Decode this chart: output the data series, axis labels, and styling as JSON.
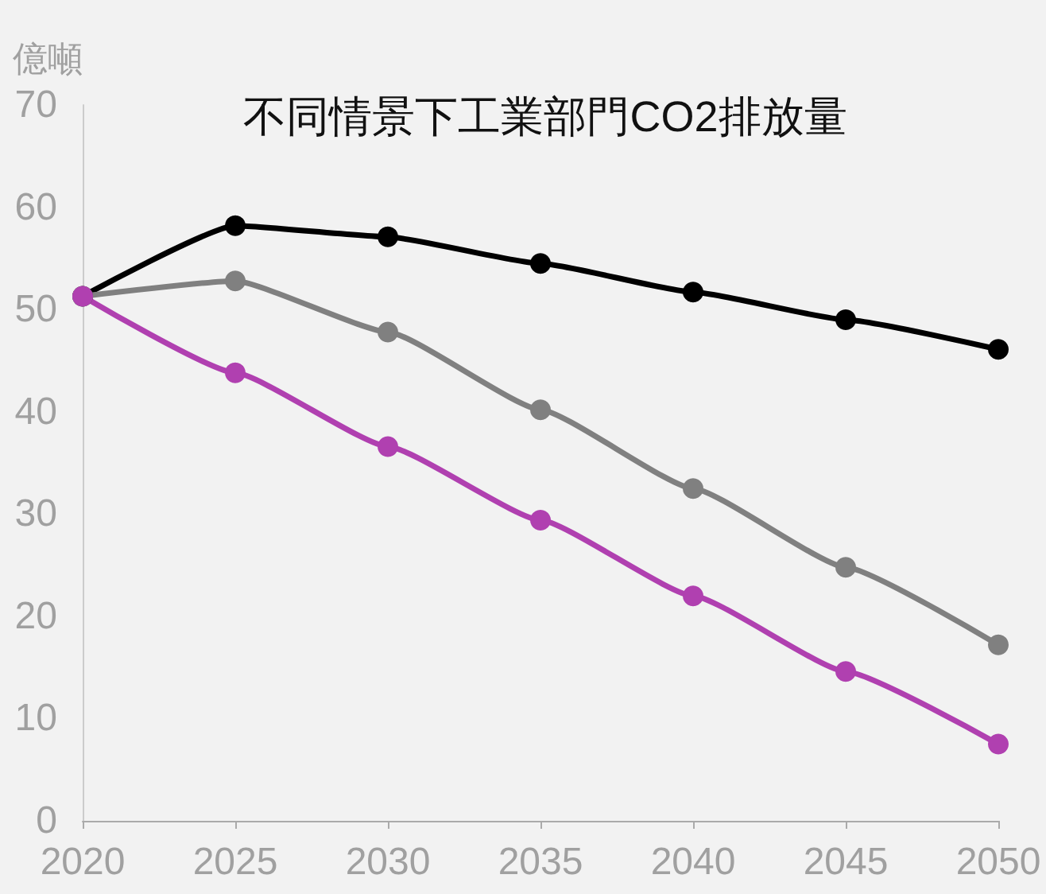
{
  "chart_data": {
    "type": "line",
    "title": "不同情景下工業部門CO2排放量",
    "ylabel": "億噸",
    "x": [
      2020,
      2025,
      2030,
      2035,
      2040,
      2045,
      2050
    ],
    "series": [
      {
        "color": "#000000",
        "values": [
          51.3,
          58.2,
          57.1,
          54.5,
          51.7,
          49.0,
          46.1
        ]
      },
      {
        "color": "#808080",
        "values": [
          51.3,
          52.8,
          47.8,
          40.2,
          32.5,
          24.8,
          17.2
        ]
      },
      {
        "color": "#b040b0",
        "values": [
          51.3,
          43.8,
          36.6,
          29.4,
          22.0,
          14.6,
          7.5
        ]
      }
    ],
    "xlim": [
      2020,
      2050
    ],
    "xticks": [
      2020,
      2025,
      2030,
      2035,
      2040,
      2045,
      2050
    ],
    "ylim": [
      0,
      70
    ],
    "yticks": [
      0,
      10,
      20,
      30,
      40,
      50,
      60,
      70
    ],
    "grid": false,
    "marker": "circle",
    "line_style": "solid"
  }
}
